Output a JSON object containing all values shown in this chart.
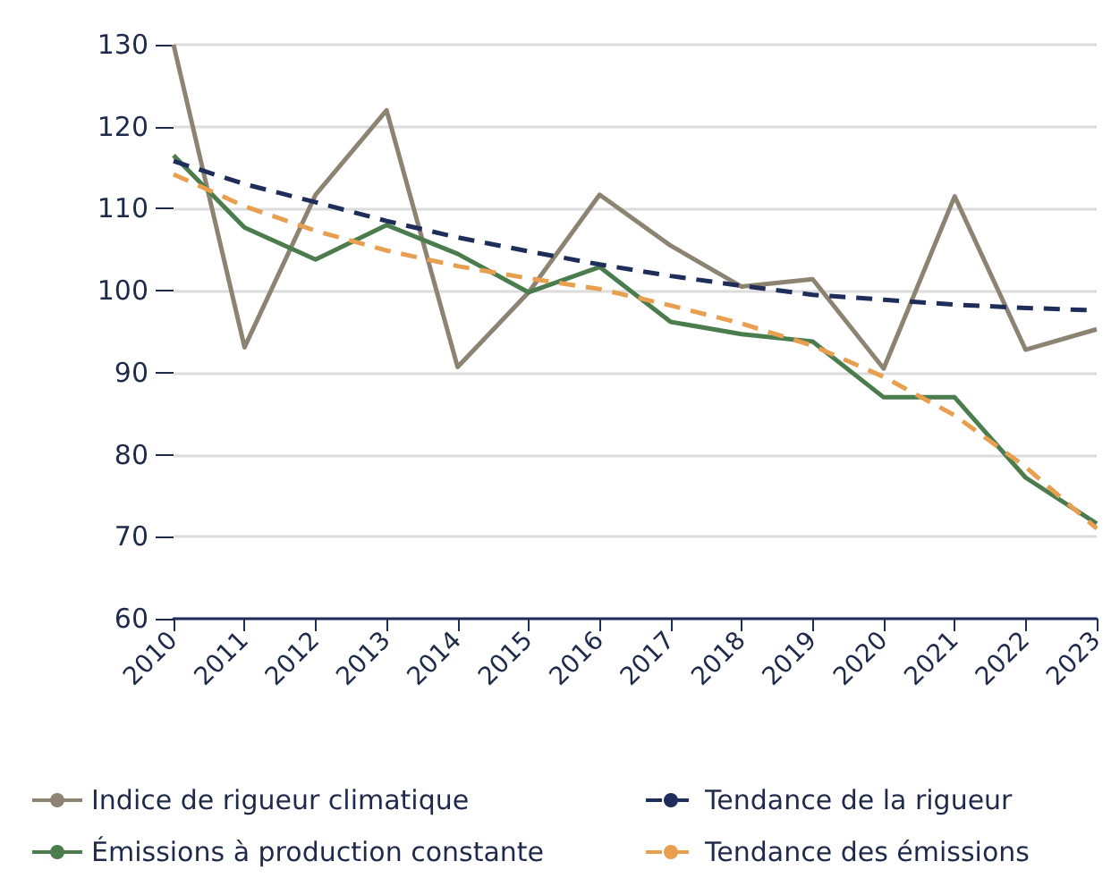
{
  "chart_data": {
    "type": "line",
    "categories": [
      "2010",
      "2011",
      "2012",
      "2013",
      "2014",
      "2015",
      "2016",
      "2017",
      "2018",
      "2019",
      "2020",
      "2021",
      "2022",
      "2023"
    ],
    "series": [
      {
        "name": "Indice de rigueur climatique",
        "color": "#8c8373",
        "line_style": "solid",
        "values": [
          130,
          93.1,
          111.7,
          122,
          90.7,
          99.8,
          111.7,
          105.5,
          100.5,
          101.4,
          90.5,
          111.5,
          92.8,
          95.3
        ]
      },
      {
        "name": "Émissions à production constante",
        "color": "#4a7c4e",
        "line_style": "solid",
        "values": [
          116.5,
          107.7,
          103.8,
          108,
          104.5,
          99.8,
          102.9,
          96.2,
          94.7,
          93.8,
          87,
          87,
          77.2,
          71.6
        ]
      },
      {
        "name": "Tendance de la rigueur",
        "color": "#1f2d5a",
        "line_style": "dashed",
        "values": [
          115.8,
          113,
          110.8,
          108.5,
          106.5,
          104.8,
          103.2,
          101.8,
          100.6,
          99.5,
          98.9,
          98.3,
          97.9,
          97.6
        ]
      },
      {
        "name": "Tendance des émissions",
        "color": "#e8a050",
        "line_style": "dashed",
        "values": [
          114.2,
          110.3,
          107.3,
          104.9,
          103,
          101.5,
          100.2,
          98.2,
          96,
          93.3,
          89.5,
          84.8,
          78.5,
          71
        ]
      }
    ],
    "ylim": [
      60,
      130
    ],
    "yticks": [
      60,
      70,
      80,
      90,
      100,
      110,
      120,
      130
    ],
    "grid": "y",
    "legend": "bottom",
    "marker": "none"
  }
}
